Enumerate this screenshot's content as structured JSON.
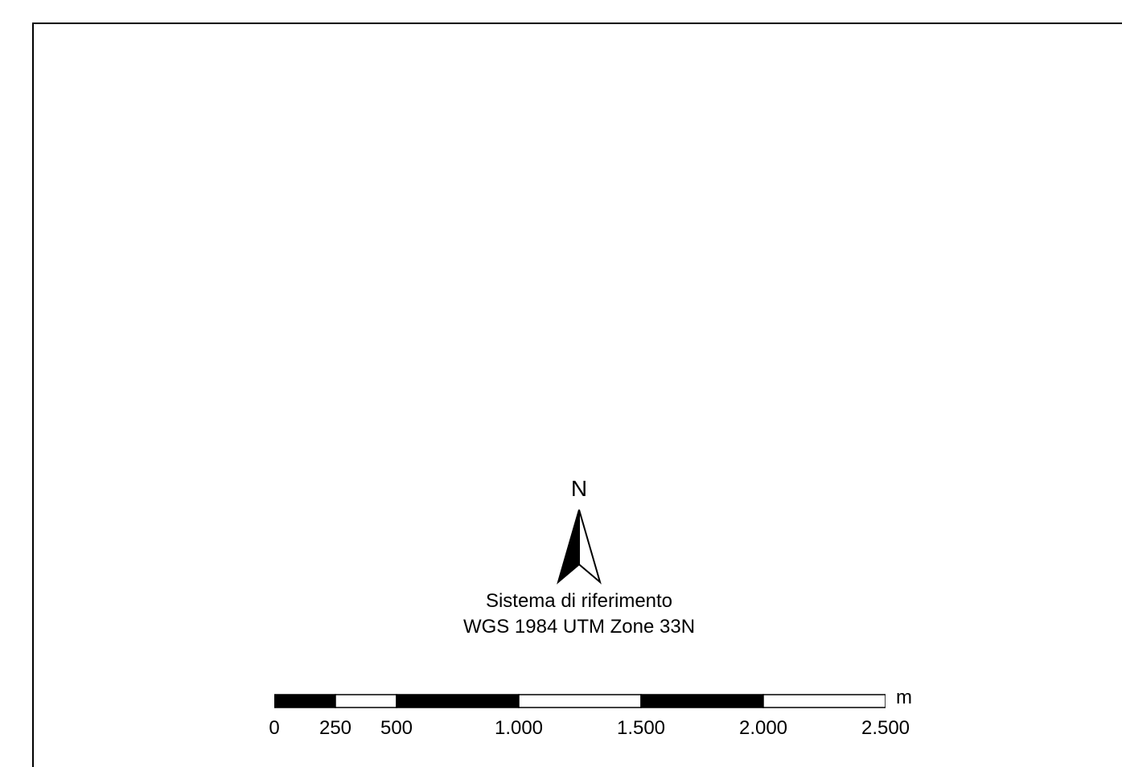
{
  "north_arrow": {
    "label": "N",
    "icon": "north-arrow-icon"
  },
  "coordinate_system": {
    "line1": "Sistema di riferimento",
    "line2": "WGS 1984 UTM Zone 33N"
  },
  "scale_bar": {
    "unit": "m",
    "max_value": 2500,
    "ticks": [
      {
        "value": 0,
        "label": "0"
      },
      {
        "value": 250,
        "label": "250"
      },
      {
        "value": 500,
        "label": "500"
      },
      {
        "value": 1000,
        "label": "1.000"
      },
      {
        "value": 1500,
        "label": "1.500"
      },
      {
        "value": 2000,
        "label": "2.000"
      },
      {
        "value": 2500,
        "label": "2.500"
      }
    ],
    "fill_color": "#000000",
    "empty_color": "#ffffff"
  }
}
